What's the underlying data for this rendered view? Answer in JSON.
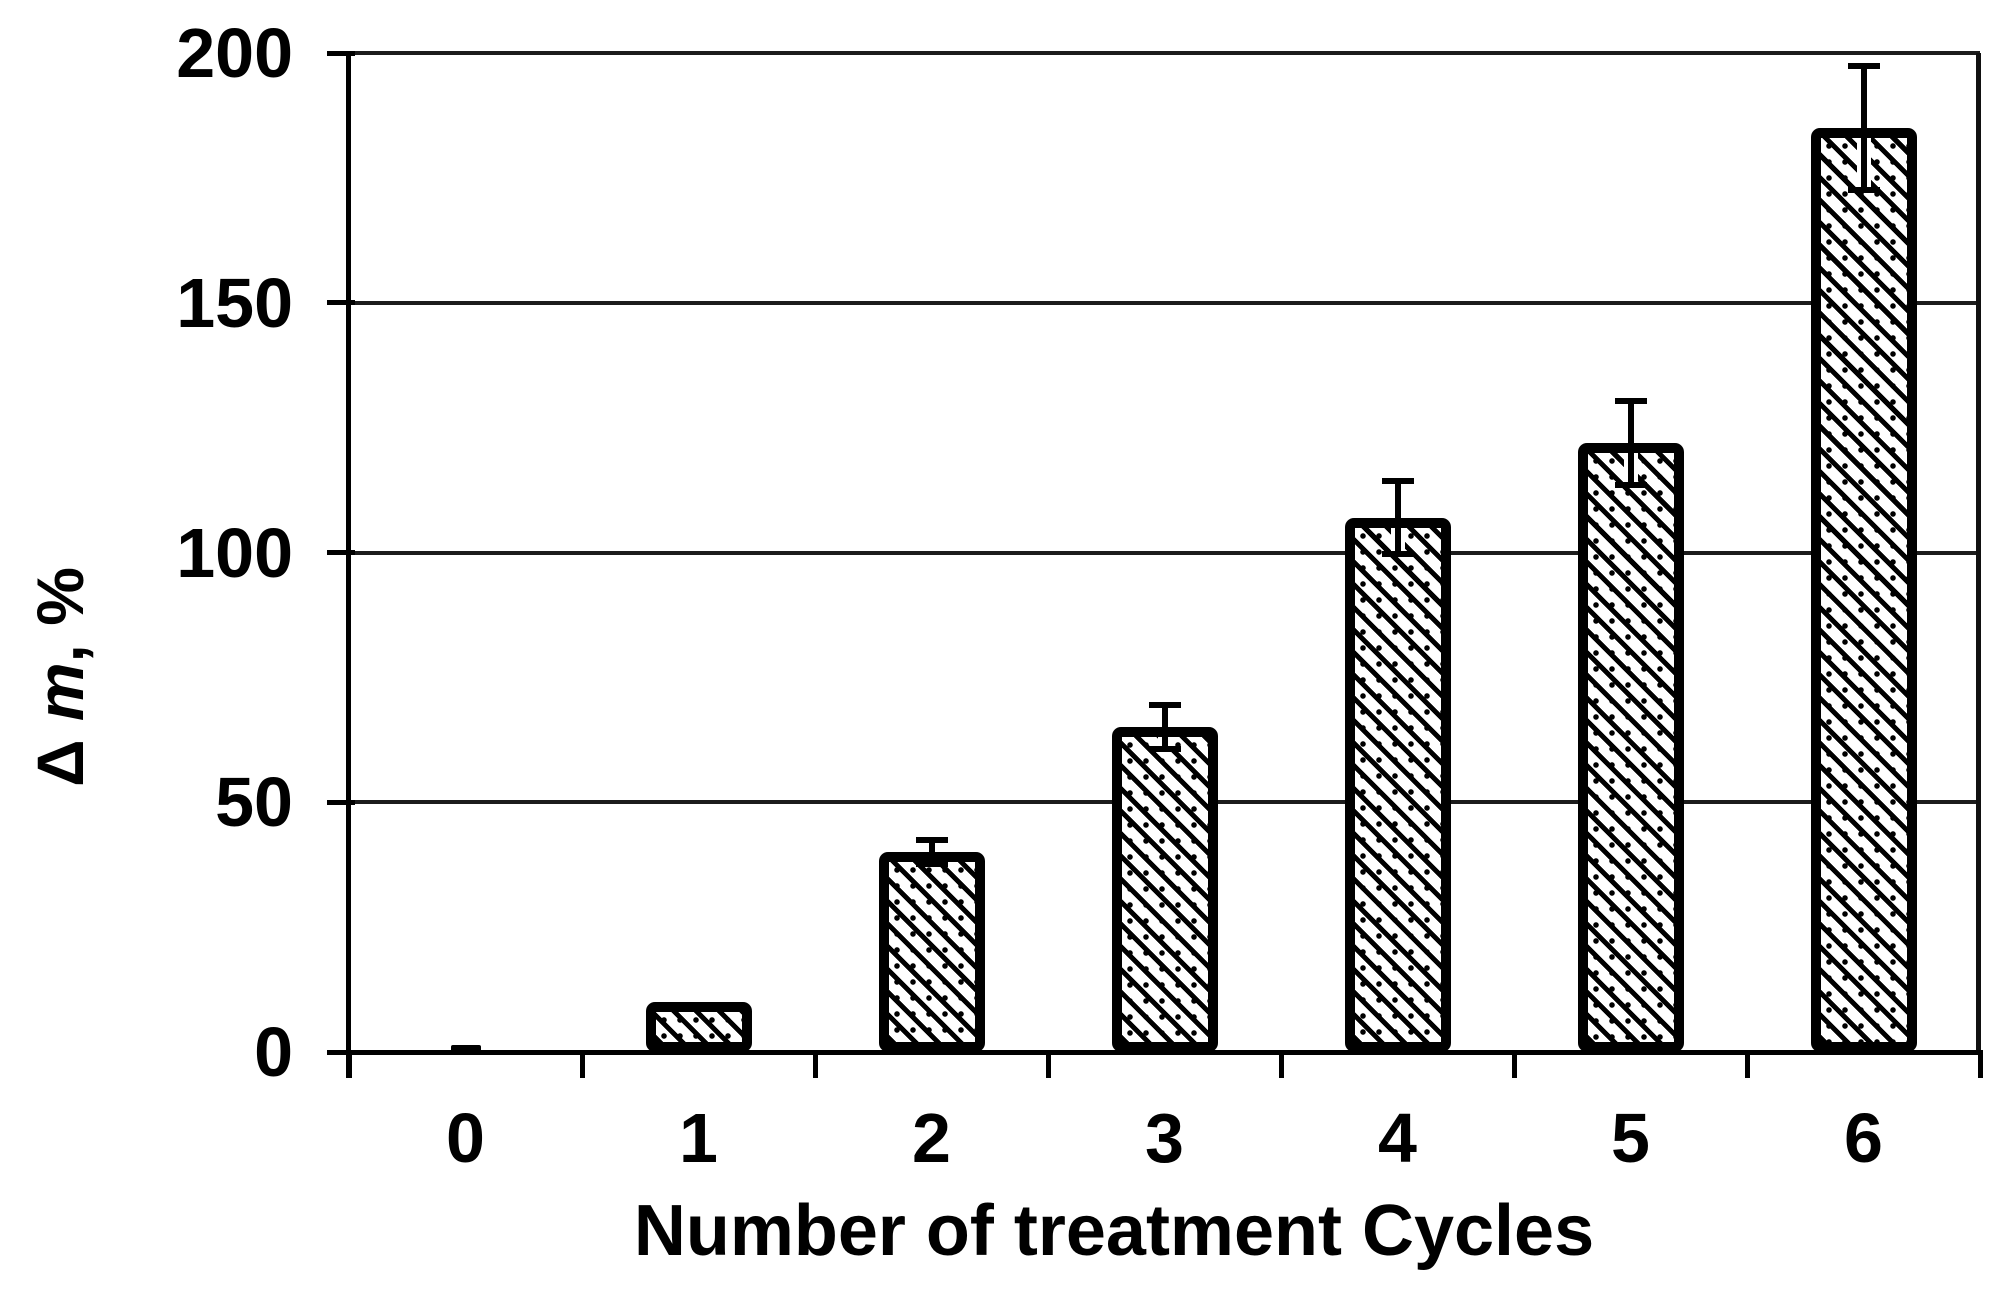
{
  "chart_data": {
    "type": "bar",
    "title": "",
    "xlabel": "Number of treatment Cycles",
    "ylabel": "Δ m, %",
    "categories": [
      "0",
      "1",
      "2",
      "3",
      "4",
      "5",
      "6"
    ],
    "values": [
      1,
      10,
      40,
      65,
      107,
      122,
      185
    ],
    "error_bars": [
      0,
      0,
      3,
      5,
      8,
      9,
      13
    ],
    "ylim": [
      0,
      200
    ],
    "yticks": [
      0,
      50,
      100,
      150,
      200
    ],
    "grid": "horizontal-gridlines-on",
    "legend": "none",
    "bar_style": "diagonal-hatch-pattern",
    "colors": {
      "foreground": "#000000",
      "background": "#ffffff"
    }
  },
  "ylabel_parts": {
    "prefix": "Δ ",
    "italic": "m",
    "suffix": ", %"
  }
}
